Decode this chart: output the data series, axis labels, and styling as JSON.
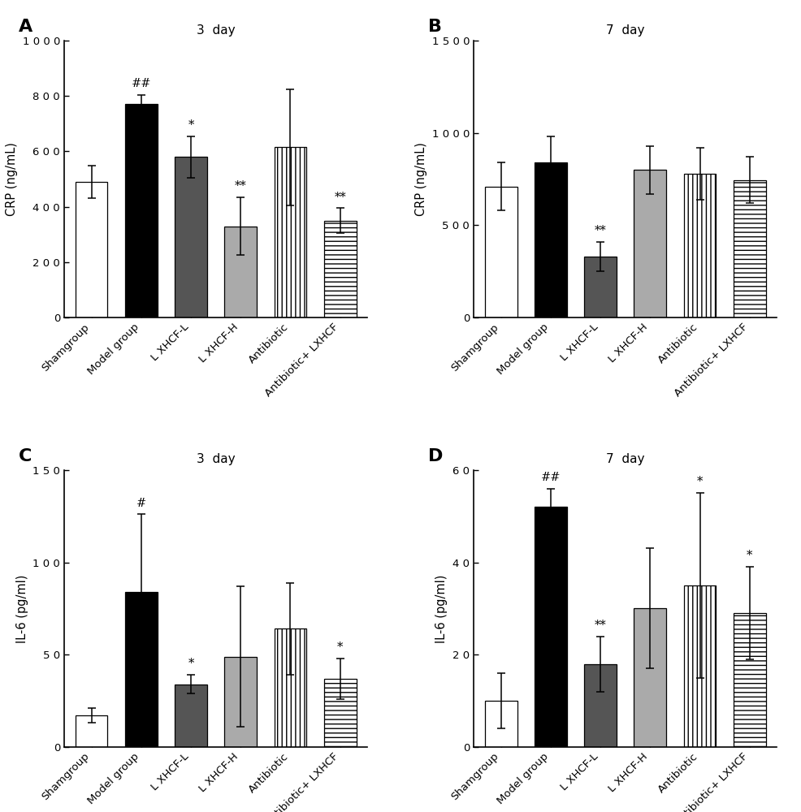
{
  "panels": [
    {
      "label": "A",
      "title": "3  day",
      "ylabel": "CRP (ng/mL)",
      "ylim": [
        0,
        1000
      ],
      "yticks": [
        0,
        200,
        400,
        600,
        800,
        1000
      ],
      "ytick_labels": [
        "0",
        "2 0 0",
        "4 0 0",
        "6 0 0",
        "8 0 0",
        "1 0 0 0"
      ],
      "values": [
        490,
        770,
        580,
        330,
        615,
        350
      ],
      "errors": [
        60,
        35,
        75,
        105,
        210,
        45
      ],
      "sig_above": [
        "",
        "##",
        "*",
        "**",
        "",
        "**"
      ],
      "colors": [
        "white",
        "black",
        "#555555",
        "#aaaaaa",
        "white",
        "white"
      ],
      "hatches": [
        "",
        "",
        "",
        "",
        "|||",
        "---"
      ],
      "edgecolors": [
        "black",
        "black",
        "black",
        "black",
        "black",
        "black"
      ]
    },
    {
      "label": "B",
      "title": "7  day",
      "ylabel": "CRP (ng/mL)",
      "ylim": [
        0,
        1500
      ],
      "yticks": [
        0,
        500,
        1000,
        1500
      ],
      "ytick_labels": [
        "0",
        "5 0 0",
        "1 0 0 0",
        "1 5 0 0"
      ],
      "values": [
        710,
        840,
        330,
        800,
        780,
        745
      ],
      "errors": [
        130,
        140,
        80,
        130,
        140,
        125
      ],
      "sig_above": [
        "",
        "",
        "**",
        "",
        "",
        ""
      ],
      "colors": [
        "white",
        "black",
        "#555555",
        "#aaaaaa",
        "white",
        "white"
      ],
      "hatches": [
        "",
        "",
        "",
        "",
        "|||",
        "---"
      ],
      "edgecolors": [
        "black",
        "black",
        "black",
        "black",
        "black",
        "black"
      ]
    },
    {
      "label": "C",
      "title": "3  day",
      "ylabel": "IL-6 (pg/ml)",
      "ylim": [
        0,
        150
      ],
      "yticks": [
        0,
        50,
        100,
        150
      ],
      "ytick_labels": [
        "0",
        "5 0",
        "1 0 0",
        "1 5 0"
      ],
      "values": [
        17,
        84,
        34,
        49,
        64,
        37
      ],
      "errors": [
        4,
        42,
        5,
        38,
        25,
        11
      ],
      "sig_above": [
        "",
        "#",
        "*",
        "",
        "",
        "*"
      ],
      "colors": [
        "white",
        "black",
        "#555555",
        "#aaaaaa",
        "white",
        "white"
      ],
      "hatches": [
        "",
        "",
        "",
        "",
        "|||",
        "---"
      ],
      "edgecolors": [
        "black",
        "black",
        "black",
        "black",
        "black",
        "black"
      ]
    },
    {
      "label": "D",
      "title": "7  day",
      "ylabel": "IL-6 (pg/ml)",
      "ylim": [
        0,
        60
      ],
      "yticks": [
        0,
        20,
        40,
        60
      ],
      "ytick_labels": [
        "0",
        "2 0",
        "4 0",
        "6 0"
      ],
      "values": [
        10,
        52,
        18,
        30,
        35,
        29
      ],
      "errors": [
        6,
        4,
        6,
        13,
        20,
        10
      ],
      "sig_above": [
        "",
        "##",
        "**",
        "",
        "*",
        "*"
      ],
      "colors": [
        "white",
        "black",
        "#555555",
        "#aaaaaa",
        "white",
        "white"
      ],
      "hatches": [
        "",
        "",
        "",
        "",
        "|||",
        "---"
      ],
      "edgecolors": [
        "black",
        "black",
        "black",
        "black",
        "black",
        "black"
      ]
    }
  ],
  "categories": [
    "Shamgroup",
    "Model group",
    "L XHCF-L",
    "L XHCF-H",
    "Antibiotic",
    "Antibiotic+ LXHCF"
  ],
  "bar_width": 0.65,
  "background_color": "#ffffff"
}
